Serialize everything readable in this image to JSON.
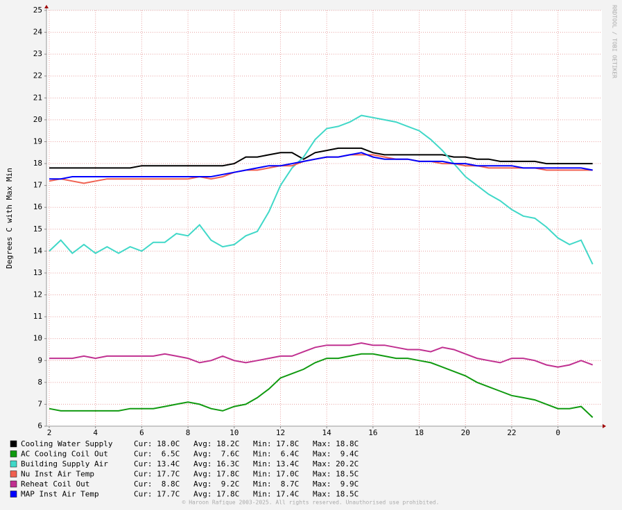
{
  "chart_data": {
    "type": "line",
    "y_label": "Degrees C with Max Min",
    "side_text": "RRDTOOL / TOBI OETIKER",
    "footer": "© Haroon Rafique 2003-2025. All rights reserved. Unauthorised use prohibited.",
    "xlim": [
      1.88,
      25.9
    ],
    "ylim": [
      6,
      25
    ],
    "xticks": [
      2,
      4,
      6,
      8,
      10,
      12,
      14,
      16,
      18,
      20,
      22,
      {
        "value": 24,
        "label": "0"
      }
    ],
    "yticks": [
      6,
      7,
      8,
      9,
      10,
      11,
      12,
      13,
      14,
      15,
      16,
      17,
      18,
      19,
      20,
      21,
      22,
      23,
      24,
      25
    ],
    "grid": true,
    "x": [
      2,
      2.5,
      3,
      3.5,
      4,
      4.5,
      5,
      5.5,
      6,
      6.5,
      7,
      7.5,
      8,
      8.5,
      9,
      9.5,
      10,
      10.5,
      11,
      11.5,
      12,
      12.5,
      13,
      13.5,
      14,
      14.5,
      15,
      15.5,
      16,
      16.5,
      17,
      17.5,
      18,
      18.5,
      19,
      19.5,
      20,
      20.5,
      21,
      21.5,
      22,
      22.5,
      23,
      23.5,
      24,
      24.5,
      25,
      25.5
    ],
    "series": [
      {
        "name": "Cooling Water Supply",
        "color": "#000000",
        "stats": [
          "Cur: 18.0C",
          "Avg: 18.2C",
          "Min: 17.8C",
          "Max: 18.8C"
        ],
        "values": [
          17.8,
          17.8,
          17.8,
          17.8,
          17.8,
          17.8,
          17.8,
          17.8,
          17.9,
          17.9,
          17.9,
          17.9,
          17.9,
          17.9,
          17.9,
          17.9,
          18.0,
          18.3,
          18.3,
          18.4,
          18.5,
          18.5,
          18.2,
          18.5,
          18.6,
          18.7,
          18.7,
          18.7,
          18.5,
          18.4,
          18.4,
          18.4,
          18.4,
          18.4,
          18.4,
          18.3,
          18.3,
          18.2,
          18.2,
          18.1,
          18.1,
          18.1,
          18.1,
          18.0,
          18.0,
          18.0,
          18.0,
          18.0
        ]
      },
      {
        "name": "AC Cooling Coil Out",
        "color": "#109a10",
        "stats": [
          "Cur:  6.5C",
          "Avg:  7.6C",
          "Min:  6.4C",
          "Max:  9.4C"
        ],
        "values": [
          6.8,
          6.7,
          6.7,
          6.7,
          6.7,
          6.7,
          6.7,
          6.8,
          6.8,
          6.8,
          6.9,
          7.0,
          7.1,
          7.0,
          6.8,
          6.7,
          6.9,
          7.0,
          7.3,
          7.7,
          8.2,
          8.4,
          8.6,
          8.9,
          9.1,
          9.1,
          9.2,
          9.3,
          9.3,
          9.2,
          9.1,
          9.1,
          9.0,
          8.9,
          8.7,
          8.5,
          8.3,
          8.0,
          7.8,
          7.6,
          7.4,
          7.3,
          7.2,
          7.0,
          6.8,
          6.8,
          6.9,
          6.4
        ]
      },
      {
        "name": "Building Supply Air",
        "color": "#40d8c8",
        "stats": [
          "Cur: 13.4C",
          "Avg: 16.3C",
          "Min: 13.4C",
          "Max: 20.2C"
        ],
        "values": [
          14.0,
          14.5,
          13.9,
          14.3,
          13.9,
          14.2,
          13.9,
          14.2,
          14.0,
          14.4,
          14.4,
          14.8,
          14.7,
          15.2,
          14.5,
          14.2,
          14.3,
          14.7,
          14.9,
          15.8,
          17.0,
          17.8,
          18.3,
          19.1,
          19.6,
          19.7,
          19.9,
          20.2,
          20.1,
          20.0,
          19.9,
          19.7,
          19.5,
          19.1,
          18.6,
          18.0,
          17.4,
          17.0,
          16.6,
          16.3,
          15.9,
          15.6,
          15.5,
          15.1,
          14.6,
          14.3,
          14.5,
          13.4
        ]
      },
      {
        "name": "Nu Inst Air Temp",
        "color": "#f06050",
        "stats": [
          "Cur: 17.7C",
          "Avg: 17.8C",
          "Min: 17.0C",
          "Max: 18.5C"
        ],
        "values": [
          17.2,
          17.3,
          17.2,
          17.1,
          17.2,
          17.3,
          17.3,
          17.3,
          17.3,
          17.3,
          17.3,
          17.3,
          17.3,
          17.4,
          17.3,
          17.4,
          17.6,
          17.7,
          17.7,
          17.8,
          17.9,
          17.9,
          18.1,
          18.2,
          18.3,
          18.3,
          18.4,
          18.4,
          18.4,
          18.3,
          18.2,
          18.2,
          18.1,
          18.1,
          18.0,
          18.0,
          17.9,
          17.9,
          17.8,
          17.8,
          17.8,
          17.8,
          17.8,
          17.7,
          17.7,
          17.7,
          17.7,
          17.7
        ]
      },
      {
        "name": "Reheat Coil Out",
        "color": "#c03090",
        "stats": [
          "Cur:  8.8C",
          "Avg:  9.2C",
          "Min:  8.7C",
          "Max:  9.9C"
        ],
        "values": [
          9.1,
          9.1,
          9.1,
          9.2,
          9.1,
          9.2,
          9.2,
          9.2,
          9.2,
          9.2,
          9.3,
          9.2,
          9.1,
          8.9,
          9.0,
          9.2,
          9.0,
          8.9,
          9.0,
          9.1,
          9.2,
          9.2,
          9.4,
          9.6,
          9.7,
          9.7,
          9.7,
          9.8,
          9.7,
          9.7,
          9.6,
          9.5,
          9.5,
          9.4,
          9.6,
          9.5,
          9.3,
          9.1,
          9.0,
          8.9,
          9.1,
          9.1,
          9.0,
          8.8,
          8.7,
          8.8,
          9.0,
          8.8
        ]
      },
      {
        "name": "MAP Inst Air Temp",
        "color": "#0000ff",
        "stats": [
          "Cur: 17.7C",
          "Avg: 17.8C",
          "Min: 17.4C",
          "Max: 18.5C"
        ],
        "values": [
          17.3,
          17.3,
          17.4,
          17.4,
          17.4,
          17.4,
          17.4,
          17.4,
          17.4,
          17.4,
          17.4,
          17.4,
          17.4,
          17.4,
          17.4,
          17.5,
          17.6,
          17.7,
          17.8,
          17.9,
          17.9,
          18.0,
          18.1,
          18.2,
          18.3,
          18.3,
          18.4,
          18.5,
          18.3,
          18.2,
          18.2,
          18.2,
          18.1,
          18.1,
          18.1,
          18.0,
          18.0,
          17.9,
          17.9,
          17.9,
          17.9,
          17.8,
          17.8,
          17.8,
          17.8,
          17.8,
          17.8,
          17.7
        ]
      }
    ]
  }
}
